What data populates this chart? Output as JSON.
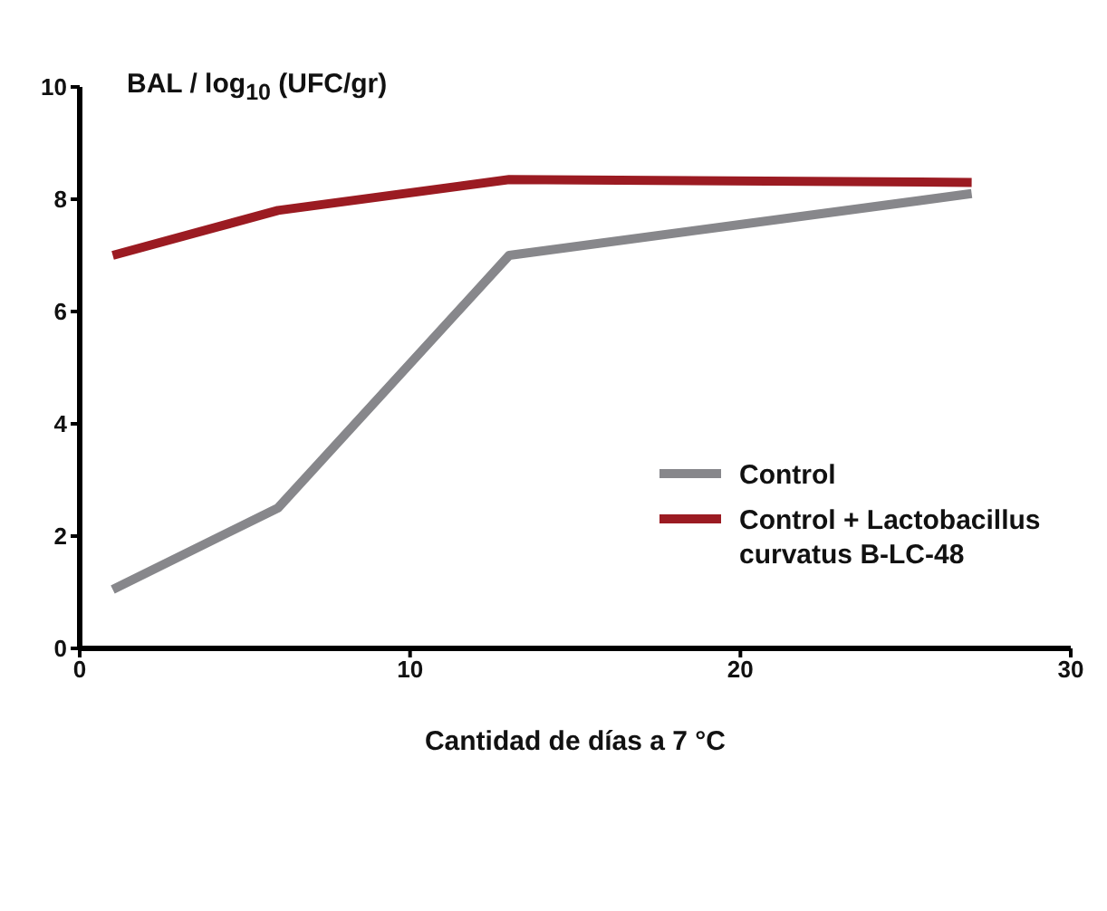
{
  "chart_data": {
    "type": "line",
    "ylabel": "BAL / log$_{10}$ (UFC/gr)",
    "xlabel": "Cantidad de días a 7 °C",
    "x": [
      1,
      6,
      13,
      27
    ],
    "series": [
      {
        "name": "Control",
        "color": "#87878b",
        "values": [
          1.05,
          2.5,
          7.0,
          8.1
        ]
      },
      {
        "name": "Control + Lactobacillus curvatus B-LC-48",
        "color": "#9b1b22",
        "values": [
          7.0,
          7.8,
          8.35,
          8.3
        ]
      }
    ],
    "xlim": [
      0,
      30
    ],
    "xticks": [
      0,
      10,
      20,
      30
    ],
    "ylim": [
      0,
      10
    ],
    "yticks": [
      0,
      2,
      4,
      6,
      8,
      10
    ],
    "grid": false,
    "legend": "right",
    "marker": "none",
    "line_style": "solid"
  }
}
